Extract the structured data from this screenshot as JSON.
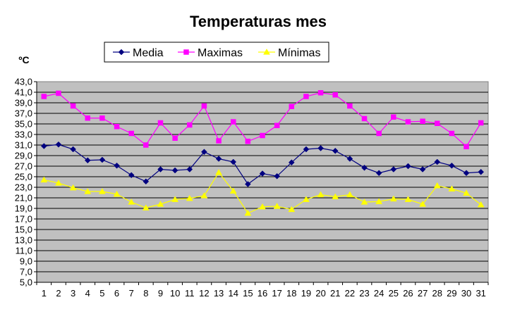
{
  "chart_data": {
    "type": "line",
    "title": "Temperaturas mes",
    "ylabel": "ºC",
    "xlabel": "",
    "ylim": [
      5,
      43
    ],
    "ytick_step": 2,
    "grid": true,
    "plot_background": "#c0c0c0",
    "legend_placement": "top-center",
    "categories": [
      "1",
      "2",
      "3",
      "4",
      "5",
      "6",
      "7",
      "8",
      "9",
      "10",
      "11",
      "12",
      "13",
      "14",
      "15",
      "16",
      "17",
      "18",
      "19",
      "20",
      "21",
      "22",
      "23",
      "24",
      "25",
      "26",
      "27",
      "28",
      "29",
      "30",
      "31"
    ],
    "ytick_labels": [
      "43,0",
      "41,0",
      "39,0",
      "37,0",
      "35,0",
      "33,0",
      "31,0",
      "29,0",
      "27,0",
      "25,0",
      "23,0",
      "21,0",
      "19,0",
      "17,0",
      "15,0",
      "13,0",
      "11,0",
      "9,0",
      "7,0",
      "5,0"
    ],
    "series": [
      {
        "name": "Media",
        "color": "#000080",
        "marker": "diamond",
        "values": [
          30.8,
          31.1,
          30.2,
          28.1,
          28.2,
          27.1,
          25.3,
          24.1,
          26.4,
          26.2,
          26.4,
          29.7,
          28.4,
          27.8,
          23.6,
          25.6,
          25.1,
          27.7,
          30.2,
          30.4,
          29.9,
          28.4,
          26.7,
          25.7,
          26.4,
          27.0,
          26.4,
          27.8,
          27.1,
          25.7,
          25.9
        ]
      },
      {
        "name": "Maximas",
        "color": "#ff00ff",
        "marker": "square",
        "values": [
          40.2,
          40.8,
          38.4,
          36.1,
          36.1,
          34.5,
          33.2,
          31.0,
          35.2,
          32.3,
          34.8,
          38.4,
          31.8,
          35.4,
          31.7,
          32.8,
          34.7,
          38.3,
          40.2,
          40.9,
          40.5,
          38.4,
          36.0,
          33.2,
          36.3,
          35.4,
          35.5,
          35.1,
          33.2,
          30.7,
          35.2
        ]
      },
      {
        "name": "Mínimas",
        "color": "#ffff00",
        "marker": "triangle",
        "values": [
          24.4,
          23.8,
          22.9,
          22.2,
          22.2,
          21.7,
          20.2,
          19.1,
          19.8,
          20.7,
          20.9,
          21.4,
          25.8,
          22.3,
          18.1,
          19.3,
          19.4,
          18.8,
          20.7,
          21.6,
          21.2,
          21.6,
          20.2,
          20.3,
          20.8,
          20.7,
          19.8,
          23.3,
          22.7,
          21.9,
          19.7
        ]
      }
    ]
  }
}
